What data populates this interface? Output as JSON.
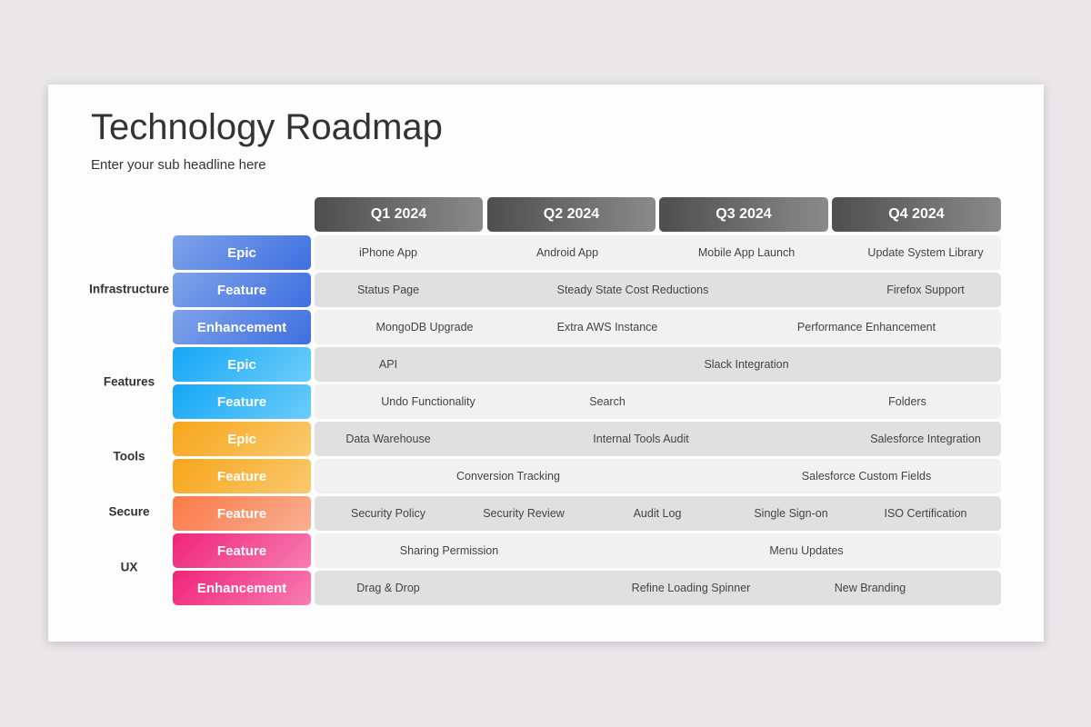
{
  "header": {
    "title": "Technology Roadmap",
    "subtitle": "Enter your sub headline here"
  },
  "quarters": [
    "Q1 2024",
    "Q2 2024",
    "Q3 2024",
    "Q4 2024"
  ],
  "colors": {
    "infrastructure": [
      "#7ea3ea",
      "#3f6fe0"
    ],
    "features": [
      "#15a6f5",
      "#6ccdfa"
    ],
    "tools": [
      "#f8a51a",
      "#f9ca70"
    ],
    "secure": [
      "#fb7a48",
      "#f9af92"
    ],
    "ux": [
      "#f0247a",
      "#f77db2"
    ],
    "row_light": "#f1f1f1",
    "row_dark": "#e0e0e0"
  },
  "groups": [
    {
      "label": "Infrastructure"
    },
    {
      "label": "Features"
    },
    {
      "label": "Tools"
    },
    {
      "label": "Secure"
    },
    {
      "label": "UX"
    }
  ],
  "rows": [
    {
      "group": "infrastructure",
      "type": "Epic",
      "items": [
        "iPhone App",
        "Android App",
        "Mobile App Launch",
        "Update System Library"
      ]
    },
    {
      "group": "infrastructure",
      "type": "Feature",
      "items": [
        "Status Page",
        "Steady State Cost Reductions",
        "Firefox Support"
      ]
    },
    {
      "group": "infrastructure",
      "type": "Enhancement",
      "items": [
        "MongoDB Upgrade",
        "Extra AWS Instance",
        "Performance Enhancement"
      ]
    },
    {
      "group": "features",
      "type": "Epic",
      "items": [
        "API",
        "Slack Integration"
      ]
    },
    {
      "group": "features",
      "type": "Feature",
      "items": [
        "Undo Functionality",
        "Search",
        "Folders"
      ]
    },
    {
      "group": "tools",
      "type": "Epic",
      "items": [
        "Data Warehouse",
        "Internal Tools Audit",
        "Salesforce Integration"
      ]
    },
    {
      "group": "tools",
      "type": "Feature",
      "items": [
        "Conversion Tracking",
        "Salesforce Custom Fields"
      ]
    },
    {
      "group": "secure",
      "type": "Feature",
      "items": [
        "Security Policy",
        "Security Review",
        "Audit Log",
        "Single Sign-on",
        "ISO Certification"
      ]
    },
    {
      "group": "ux",
      "type": "Feature",
      "items": [
        "Sharing Permission",
        "Menu Updates"
      ]
    },
    {
      "group": "ux",
      "type": "Enhancement",
      "items": [
        "Drag & Drop",
        "Refine Loading Spinner",
        "New Branding"
      ]
    }
  ]
}
